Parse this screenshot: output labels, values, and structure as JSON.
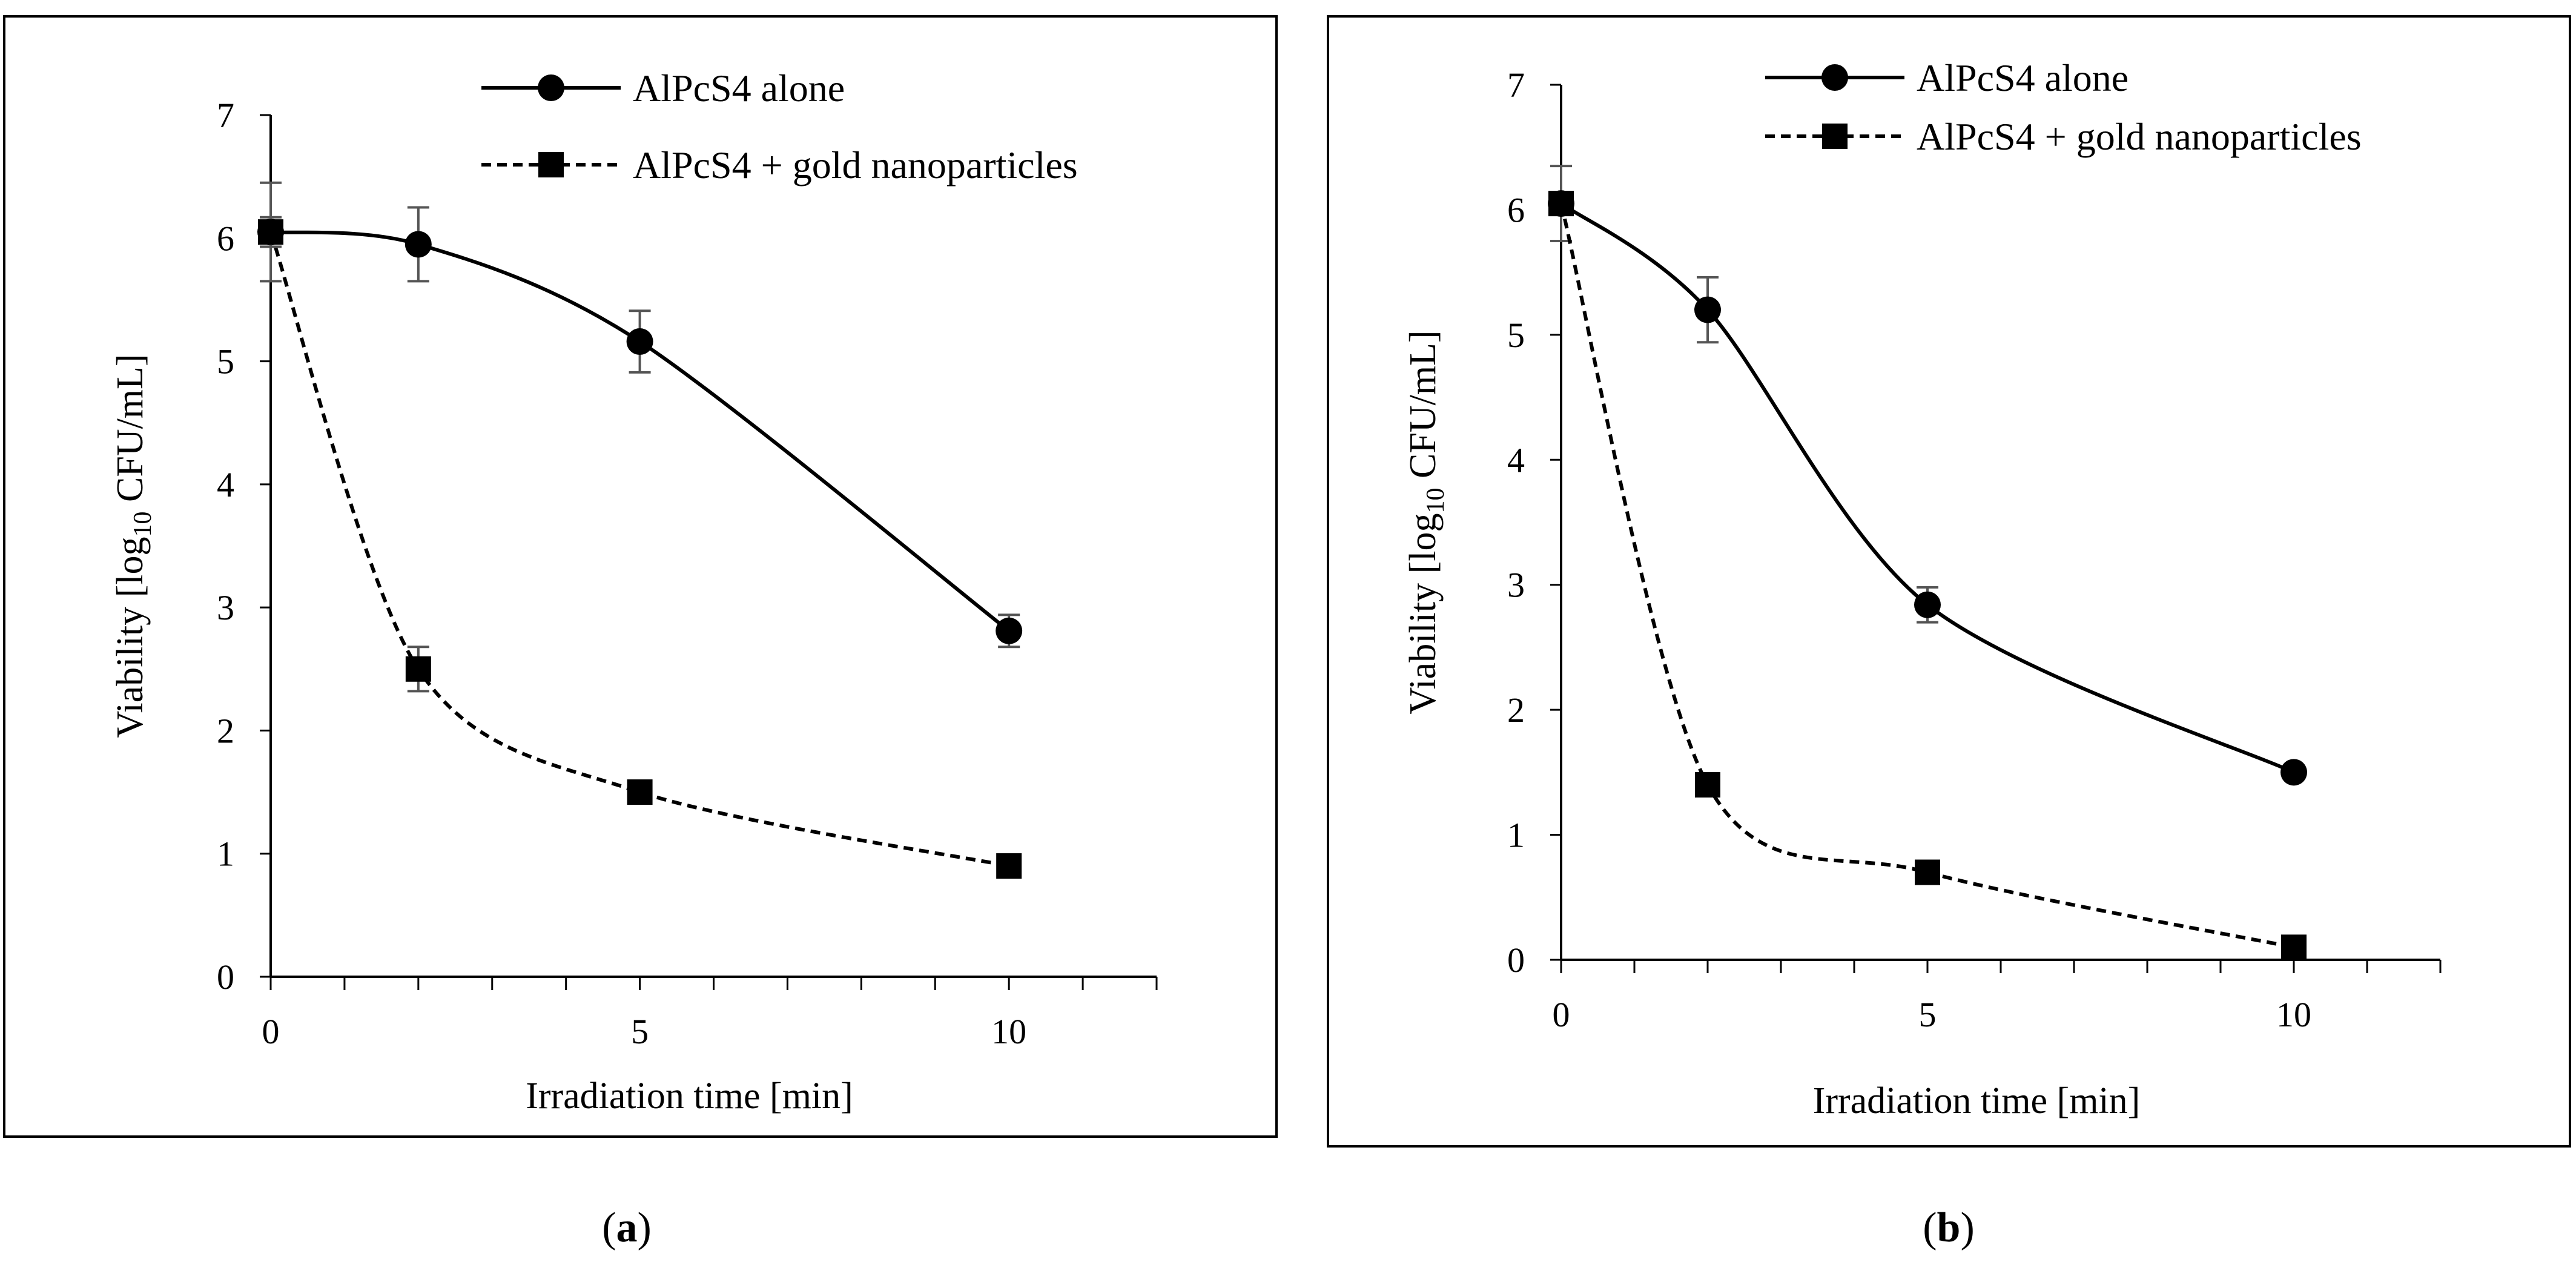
{
  "panels": [
    {
      "label_open": "(",
      "label_letter": "a",
      "label_close": ")"
    },
    {
      "label_open": "(",
      "label_letter": "b",
      "label_close": ")"
    }
  ],
  "chart_data": [
    {
      "type": "line",
      "panel": "a",
      "xlabel": "Irradiation time [min]",
      "ylabel_pre": "Viability [log",
      "ylabel_sub": "10",
      "ylabel_post": " CFU/mL]",
      "xlim": [
        0,
        12
      ],
      "ylim": [
        0,
        7
      ],
      "xticks": [
        0,
        5,
        10
      ],
      "yticks": [
        0,
        1,
        2,
        3,
        4,
        5,
        6,
        7
      ],
      "legend_position": "top-right",
      "series": [
        {
          "name": "AlPcS4 alone",
          "marker": "circle",
          "style": "solid",
          "x": [
            0,
            2,
            5,
            10
          ],
          "values": [
            6.05,
            5.95,
            5.16,
            2.81
          ],
          "errors": [
            0.4,
            0.3,
            0.25,
            0.13
          ]
        },
        {
          "name": "AlPcS4 + gold nanoparticles",
          "marker": "square",
          "style": "dashed",
          "x": [
            0,
            2,
            5,
            10
          ],
          "values": [
            6.05,
            2.5,
            1.5,
            0.9
          ],
          "errors": [
            0.12,
            0.18,
            0.04,
            0.04
          ]
        }
      ]
    },
    {
      "type": "line",
      "panel": "b",
      "xlabel": "Irradiation time [min]",
      "ylabel_pre": "Viability [log",
      "ylabel_sub": "10",
      "ylabel_post": " CFU/mL]",
      "xlim": [
        0,
        12
      ],
      "ylim": [
        0,
        7
      ],
      "xticks": [
        0,
        5,
        10
      ],
      "yticks": [
        0,
        1,
        2,
        3,
        4,
        5,
        6,
        7
      ],
      "legend_position": "top-right",
      "series": [
        {
          "name": "AlPcS4 alone",
          "marker": "circle",
          "style": "solid",
          "x": [
            0,
            2,
            5,
            10
          ],
          "values": [
            6.05,
            5.2,
            2.84,
            1.5
          ],
          "errors": [
            0.3,
            0.26,
            0.14,
            0.04
          ]
        },
        {
          "name": "AlPcS4 + gold nanoparticles",
          "marker": "square",
          "style": "dashed",
          "x": [
            0,
            2,
            5,
            10
          ],
          "values": [
            6.05,
            1.4,
            0.7,
            0.1
          ],
          "errors": [
            0.03,
            0.06,
            0.05,
            0.03
          ]
        }
      ]
    }
  ]
}
